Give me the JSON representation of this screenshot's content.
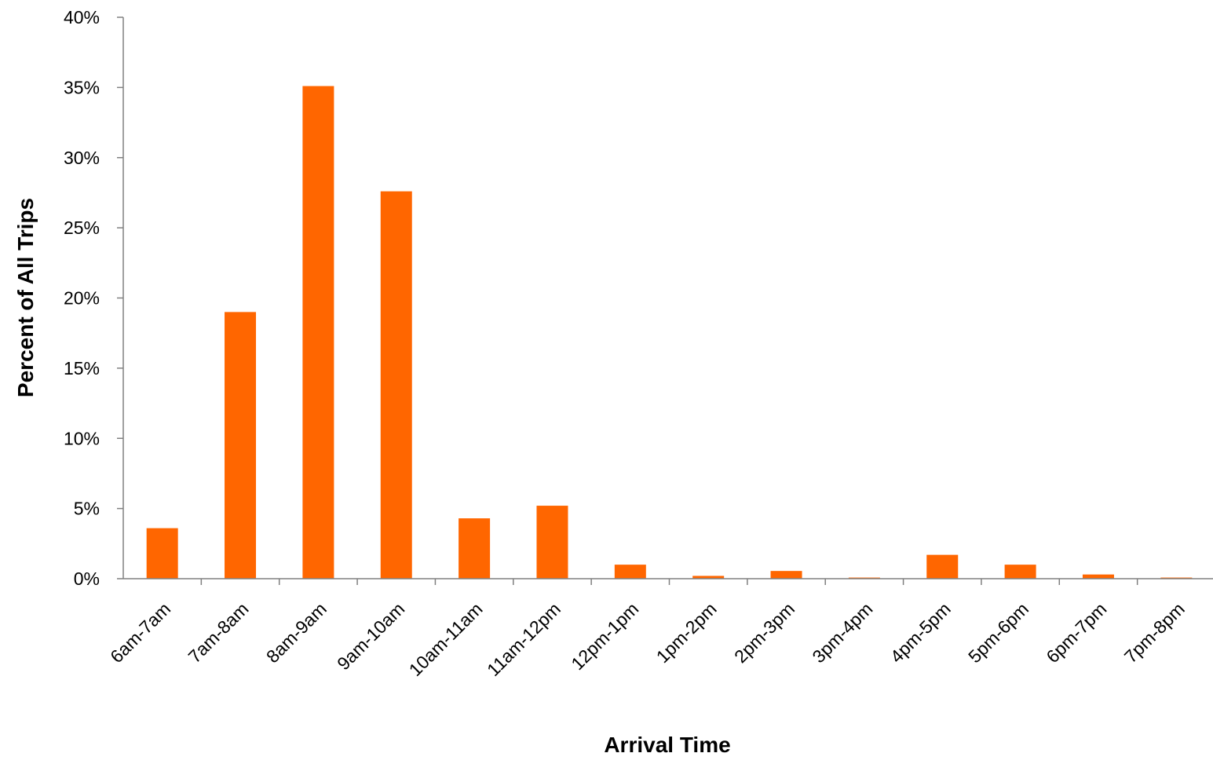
{
  "chart_data": {
    "type": "bar",
    "title": "",
    "xlabel": "Arrival Time",
    "ylabel": "Percent of All Trips",
    "categories": [
      "6am-7am",
      "7am-8am",
      "8am-9am",
      "9am-10am",
      "10am-11am",
      "11am-12pm",
      "12pm-1pm",
      "1pm-2pm",
      "2pm-3pm",
      "3pm-4pm",
      "4pm-5pm",
      "5pm-6pm",
      "6pm-7pm",
      "7pm-8pm"
    ],
    "values": [
      3.6,
      19.0,
      35.1,
      27.6,
      4.3,
      5.2,
      1.0,
      0.2,
      0.55,
      0.08,
      1.7,
      1.0,
      0.3,
      0.08
    ],
    "ylim": [
      0,
      40
    ],
    "yticks": [
      0,
      5,
      10,
      15,
      20,
      25,
      30,
      35,
      40
    ],
    "ytick_labels": [
      "0%",
      "5%",
      "10%",
      "15%",
      "20%",
      "25%",
      "30%",
      "35%",
      "40%"
    ],
    "unit": "%",
    "bar_color": "#FF6600",
    "axis_color": "#808080",
    "grid": false,
    "legend": "none"
  }
}
